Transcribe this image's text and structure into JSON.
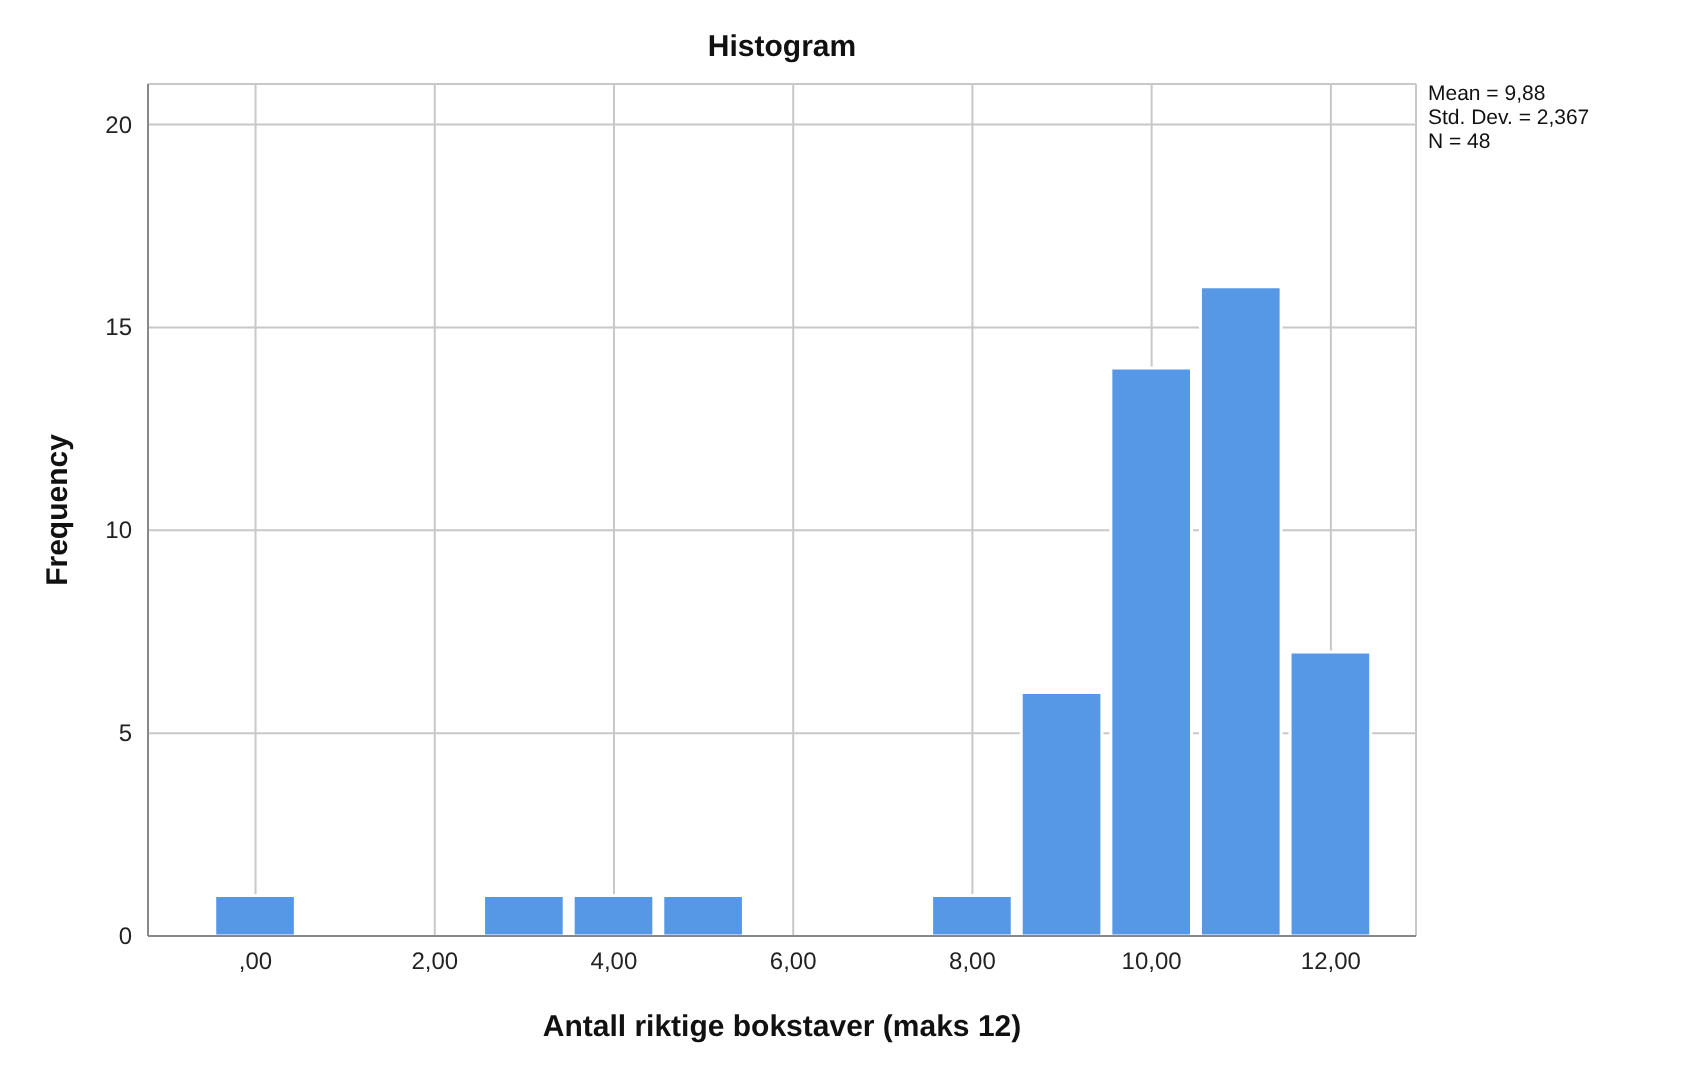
{
  "chart_data": {
    "type": "histogram",
    "title": "Histogram",
    "xlabel": "Antall riktige bokstaver (maks 12)",
    "ylabel": "Frequency",
    "bins": [
      -0.5,
      0.5,
      1.5,
      2.5,
      3.5,
      4.5,
      5.5,
      6.5,
      7.5,
      8.5,
      9.5,
      10.5,
      11.5,
      12.5
    ],
    "values": [
      1,
      0,
      0,
      1,
      1,
      1,
      0,
      0,
      1,
      6,
      14,
      16,
      7
    ],
    "color": "#5698e6",
    "xlim": [
      -1.2,
      12.95
    ],
    "xticks": [
      {
        "value": 0,
        "label": ",00"
      },
      {
        "value": 2,
        "label": "2,00"
      },
      {
        "value": 4,
        "label": "4,00"
      },
      {
        "value": 6,
        "label": "6,00"
      },
      {
        "value": 8,
        "label": "8,00"
      },
      {
        "value": 10,
        "label": "10,00"
      },
      {
        "value": 12,
        "label": "12,00"
      }
    ],
    "ylim": [
      0,
      21
    ],
    "yticks": [
      0,
      5,
      10,
      15,
      20
    ],
    "grid": true,
    "annotations": [
      "Mean = 9,88",
      "Std. Dev. = 2,367",
      "N = 48"
    ]
  }
}
